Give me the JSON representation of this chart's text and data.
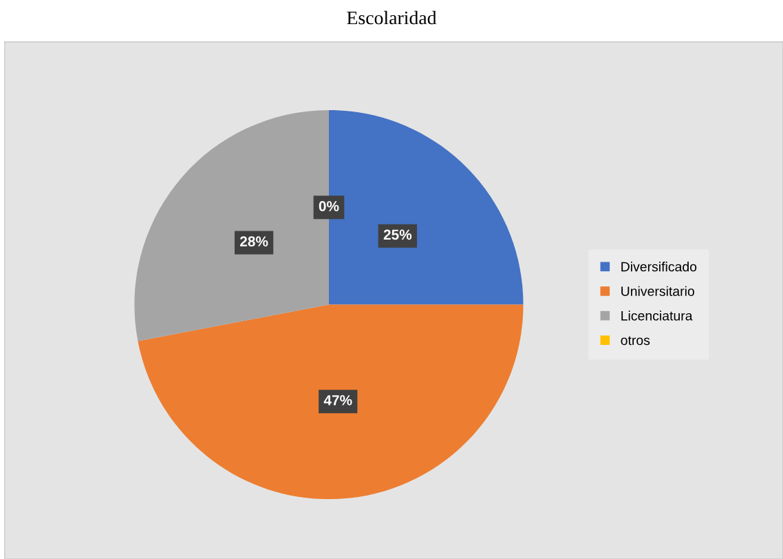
{
  "chart_data": {
    "type": "pie",
    "title": "Escolaridad",
    "categories": [
      "Diversificado",
      "Universitario",
      "Licenciatura",
      "otros"
    ],
    "values": [
      25,
      47,
      28,
      0
    ],
    "colors": [
      "#4472c4",
      "#ed7d31",
      "#a5a5a5",
      "#ffc000"
    ],
    "value_labels": [
      "25%",
      "47%",
      "28%",
      "0%"
    ],
    "legend": "right"
  }
}
